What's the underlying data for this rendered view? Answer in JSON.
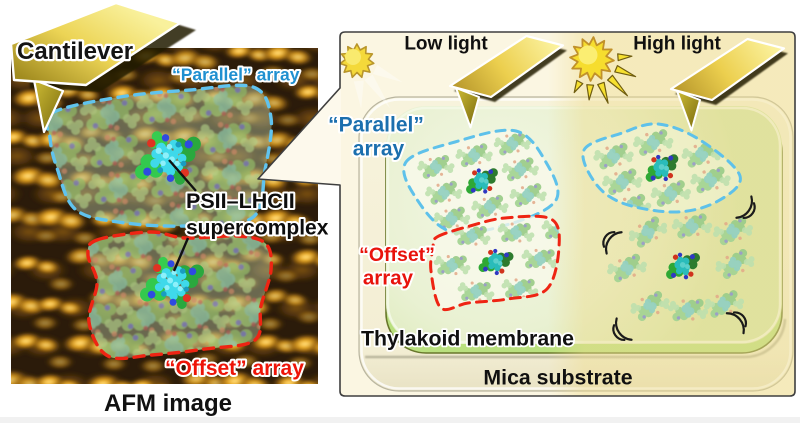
{
  "afm_panel": {
    "cantilever_label": "Cantilever",
    "parallel_array_label": "“Parallel” array",
    "supercomplex_label_line1": "PSII–LHCII",
    "supercomplex_label_line2": "supercomplex",
    "offset_array_label": "“Offset” array",
    "caption": "AFM image"
  },
  "model_panel": {
    "low_light": {
      "condition_label": "Low light",
      "parallel_array_label_line1": "“Parallel”",
      "parallel_array_label_line2": "array",
      "offset_array_label_line1": "“Offset”",
      "offset_array_label_line2": "array"
    },
    "high_light": {
      "condition_label": "High light"
    },
    "membrane_label": "Thylakoid membrane",
    "substrate_label": "Mica substrate"
  },
  "icons": {
    "low_light_sun": "sun-icon",
    "high_light_sun": "sun-with-rays-icon",
    "probe": "afm-cantilever-icon",
    "mobility": "vibration-arcs-icon"
  },
  "colors": {
    "parallel_label_blue": "#1b7fc0",
    "offset_label_red": "#ee1408",
    "parallel_outline_blue": "#5ec1ea",
    "offset_outline_red": "#ee2413",
    "afm_gold": "#f2a81e",
    "cantilever_gold": "#e8ce52",
    "membrane_green": "#cde6a4",
    "low_light_bg": "#fbf6e2",
    "high_light_bg": "#f8f0c6",
    "highlight_teal": "#2abcba",
    "highlight_green": "#2fa834"
  }
}
